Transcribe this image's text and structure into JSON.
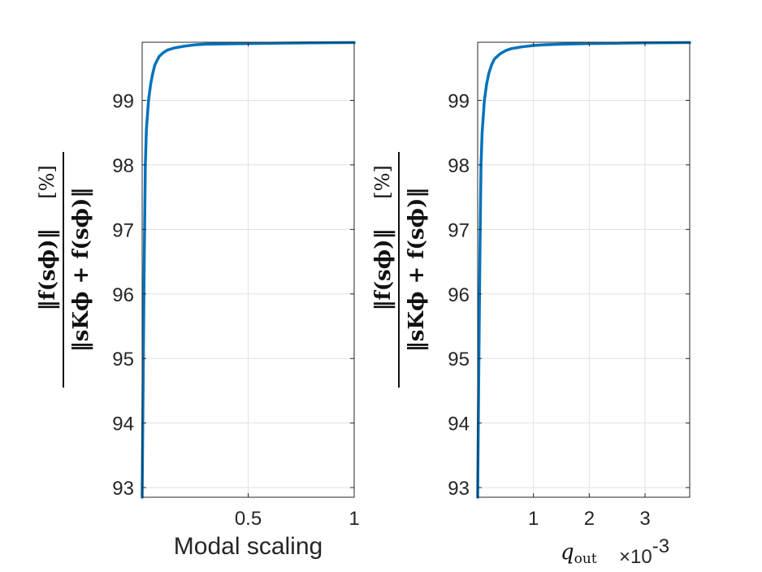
{
  "chart_data": [
    {
      "type": "line",
      "title": "",
      "xlabel": "Modal scaling",
      "ylabel": {
        "numerator": "‖f(sϕ)‖",
        "denominator": "‖sKϕ + f(sϕ)‖",
        "unit": "[%]"
      },
      "xlim": [
        0.0,
        1.0
      ],
      "ylim": [
        92.85,
        99.9
      ],
      "xticks": [
        0.5,
        1
      ],
      "xtick_labels": [
        "0.5",
        "1"
      ],
      "yticks": [
        93,
        94,
        95,
        96,
        97,
        98,
        99
      ],
      "ytick_labels": [
        "93",
        "94",
        "95",
        "96",
        "97",
        "98",
        "99"
      ],
      "grid": true,
      "series": [
        {
          "color": "#0072BD",
          "x": [
            0.0,
            0.005,
            0.01,
            0.015,
            0.02,
            0.03,
            0.04,
            0.05,
            0.06,
            0.08,
            0.1,
            0.12,
            0.15,
            0.2,
            0.25,
            0.3,
            0.4,
            0.5,
            0.6,
            0.8,
            1.0
          ],
          "y": [
            92.85,
            94.8,
            96.6,
            98.0,
            98.55,
            99.0,
            99.25,
            99.42,
            99.55,
            99.68,
            99.74,
            99.78,
            99.81,
            99.84,
            99.86,
            99.87,
            99.875,
            99.88,
            99.885,
            99.89,
            99.895
          ]
        }
      ]
    },
    {
      "type": "line",
      "title": "",
      "xlabel": "q_out",
      "xlabel_main": "q",
      "xlabel_sub": "out",
      "x_exponent": "×10",
      "x_exponent_power": "-3",
      "ylabel": {
        "numerator": "‖f(sϕ)‖",
        "denominator": "‖sKϕ + f(sϕ)‖",
        "unit": "[%]"
      },
      "xlim": [
        0.0,
        3.8
      ],
      "ylim": [
        92.85,
        99.9
      ],
      "xticks": [
        1,
        2,
        3
      ],
      "xtick_labels": [
        "1",
        "2",
        "3"
      ],
      "yticks": [
        93,
        94,
        95,
        96,
        97,
        98,
        99
      ],
      "ytick_labels": [
        "93",
        "94",
        "95",
        "96",
        "97",
        "98",
        "99"
      ],
      "grid": true,
      "series": [
        {
          "color": "#0072BD",
          "x": [
            0.0,
            0.02,
            0.04,
            0.06,
            0.08,
            0.12,
            0.16,
            0.2,
            0.25,
            0.3,
            0.4,
            0.5,
            0.6,
            0.8,
            1.0,
            1.2,
            1.5,
            2.0,
            2.5,
            3.0,
            3.8
          ],
          "y": [
            92.85,
            94.8,
            96.6,
            98.0,
            98.5,
            99.0,
            99.25,
            99.42,
            99.55,
            99.64,
            99.72,
            99.77,
            99.8,
            99.83,
            99.85,
            99.86,
            99.87,
            99.88,
            99.885,
            99.89,
            99.895
          ]
        }
      ]
    }
  ]
}
